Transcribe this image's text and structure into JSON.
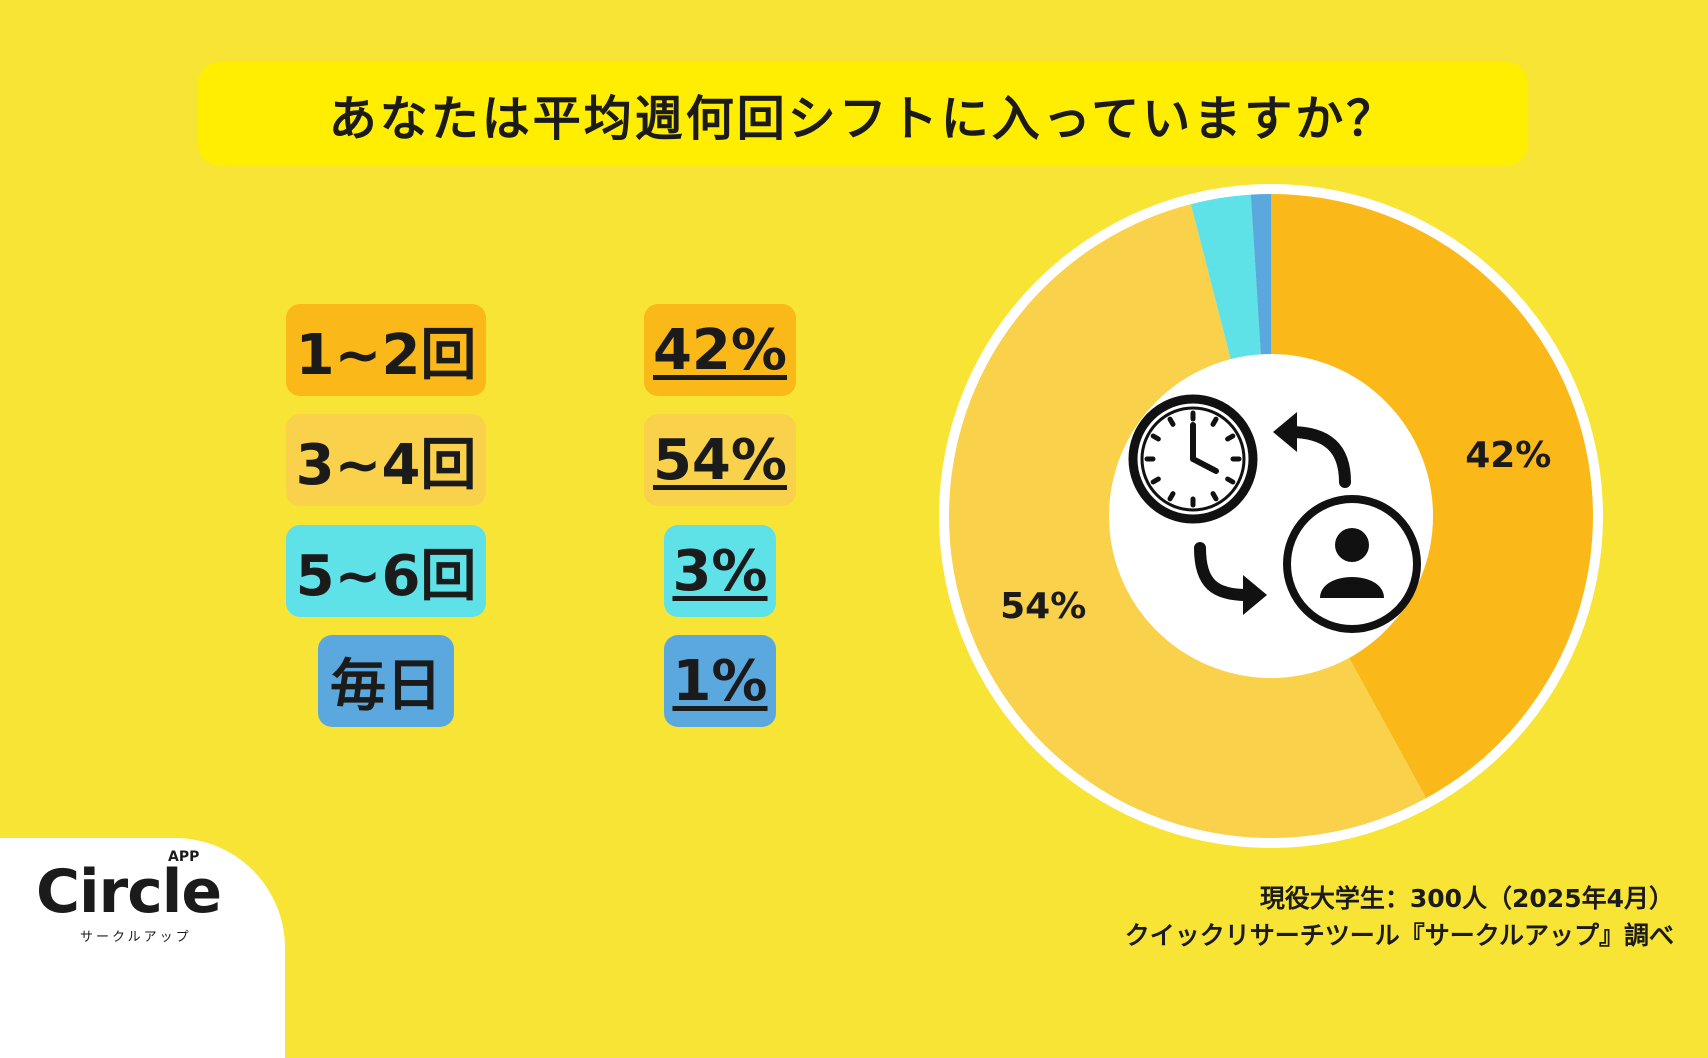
{
  "title": "あなたは平均週何回シフトに入っていますか？",
  "legend": [
    {
      "label": "1~2回",
      "pct": "42%",
      "color": "#FBB919"
    },
    {
      "label": "3~4回",
      "pct": "54%",
      "color": "#F9D14A"
    },
    {
      "label": "5~6回",
      "pct": "3%",
      "color": "#5EE1E7"
    },
    {
      "label": "毎日",
      "pct": "1%",
      "color": "#5BA8DE"
    }
  ],
  "chart_data": {
    "type": "pie",
    "categories": [
      "1~2回",
      "3~4回",
      "5~6回",
      "毎日"
    ],
    "values": [
      42,
      54,
      3,
      1
    ],
    "unit": "%",
    "data_labels": [
      "42%",
      "54%",
      "",
      ""
    ],
    "colors": [
      "#FBB919",
      "#F9D14A",
      "#5EE1E7",
      "#5BA8DE"
    ],
    "title": "あなたは平均週何回シフトに入っていますか？"
  },
  "center_icon": [
    "clock-icon",
    "arrow-curved-left-icon",
    "arrow-curved-right-icon",
    "person-icon"
  ],
  "logo": {
    "name": "Circle",
    "badge": "APP",
    "sub": "サークルアップ"
  },
  "source": {
    "line1": "現役大学生：300人（2025年4月）",
    "line2": "クイックリサーチツール『サークルアップ』調べ"
  }
}
